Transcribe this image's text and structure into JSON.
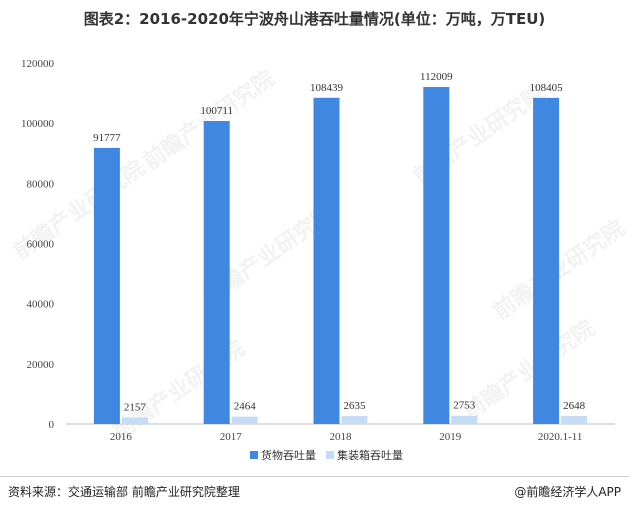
{
  "title": "图表2：2016-2020年宁波舟山港吞吐量情况(单位：万吨，万TEU)",
  "footer": {
    "source": "资料来源：交通运输部 前瞻产业研究院整理",
    "brand": "@前瞻经济学人APP"
  },
  "watermark": "前瞻产业研究院",
  "chart_data": {
    "type": "bar",
    "categories": [
      "2016",
      "2017",
      "2018",
      "2019",
      "2020.1-11"
    ],
    "series": [
      {
        "name": "货物吞吐量",
        "values": [
          91777,
          100711,
          108439,
          112009,
          108405
        ],
        "color": "#3f87e0"
      },
      {
        "name": "集装箱吞吐量",
        "values": [
          2157,
          2464,
          2635,
          2753,
          2648
        ],
        "color": "#c6dbf6"
      }
    ],
    "yticks": [
      "0",
      "20000",
      "40000",
      "60000",
      "80000",
      "100000",
      "120000"
    ],
    "ylim": [
      0,
      120000
    ],
    "legend": "bottom-center",
    "grid": false
  }
}
